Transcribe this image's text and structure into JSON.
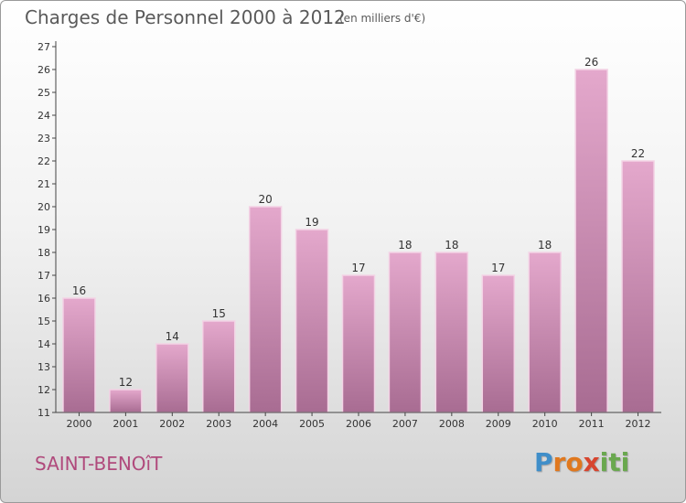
{
  "header": {
    "title": "Charges de Personnel 2000 à 2012",
    "unit": "(en milliers d'€)"
  },
  "footer": {
    "commune": "SAINT-BENOîT",
    "brand_letters": [
      {
        "char": "P",
        "color": "#3f8ec9"
      },
      {
        "char": "r",
        "color": "#e0781e"
      },
      {
        "char": "o",
        "color": "#e0781e"
      },
      {
        "char": "x",
        "color": "#d7452e"
      },
      {
        "char": "i",
        "color": "#6aa84f"
      },
      {
        "char": "t",
        "color": "#6aa84f"
      },
      {
        "char": "i",
        "color": "#6aa84f"
      }
    ]
  },
  "chart_data": {
    "type": "bar",
    "categories": [
      "2000",
      "2001",
      "2002",
      "2003",
      "2004",
      "2005",
      "2006",
      "2007",
      "2008",
      "2009",
      "2010",
      "2011",
      "2012"
    ],
    "values": [
      16,
      12,
      14,
      15,
      20,
      19,
      17,
      18,
      18,
      17,
      18,
      26,
      22
    ],
    "data_labels": [
      "16",
      "12",
      "14",
      "15",
      "20",
      "19",
      "17",
      "18",
      "18",
      "17",
      "18",
      "26",
      "22"
    ],
    "ylim": [
      11,
      27
    ],
    "yticks": [
      "11",
      "12",
      "13",
      "14",
      "15",
      "16",
      "17",
      "18",
      "19",
      "20",
      "21",
      "22",
      "23",
      "24",
      "25",
      "26",
      "27"
    ],
    "grid": false,
    "legend": "none",
    "colors": {
      "bar_top": "#e4a8cc",
      "bar_bottom": "#a86c92",
      "bar_edge": "#f3d3e5",
      "axis": "#444444",
      "label": "#333333"
    }
  }
}
